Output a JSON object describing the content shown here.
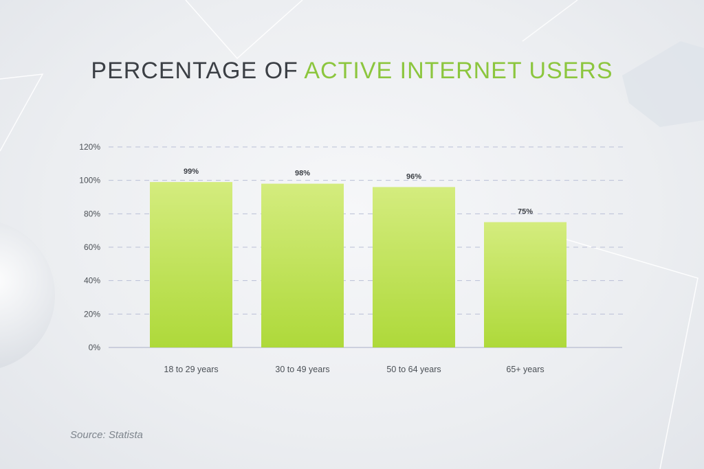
{
  "title": {
    "part1": "PERCENTAGE OF",
    "part2": "ACTIVE INTERNET USERS"
  },
  "source": "Source: Statista",
  "colors": {
    "title_dark": "#3b3f45",
    "title_accent": "#8cc63e",
    "bar_top": "#d4ec7e",
    "bar_bottom": "#aed93a",
    "grid": "#b9bfd6",
    "axis": "#b7bccf",
    "label": "#4a4f55"
  },
  "chart_data": {
    "type": "bar",
    "categories": [
      "18 to 29 years",
      "30 to 49 years",
      "50 to 64 years",
      "65+ years"
    ],
    "values": [
      99,
      98,
      96,
      75
    ],
    "value_labels": [
      "99%",
      "98%",
      "96%",
      "75%"
    ],
    "y_ticks": [
      "0%",
      "20%",
      "40%",
      "60%",
      "80%",
      "100%",
      "120%"
    ],
    "xlabel": "",
    "ylabel": "",
    "ylim": [
      0,
      120
    ],
    "grid": true,
    "legend": "none"
  }
}
